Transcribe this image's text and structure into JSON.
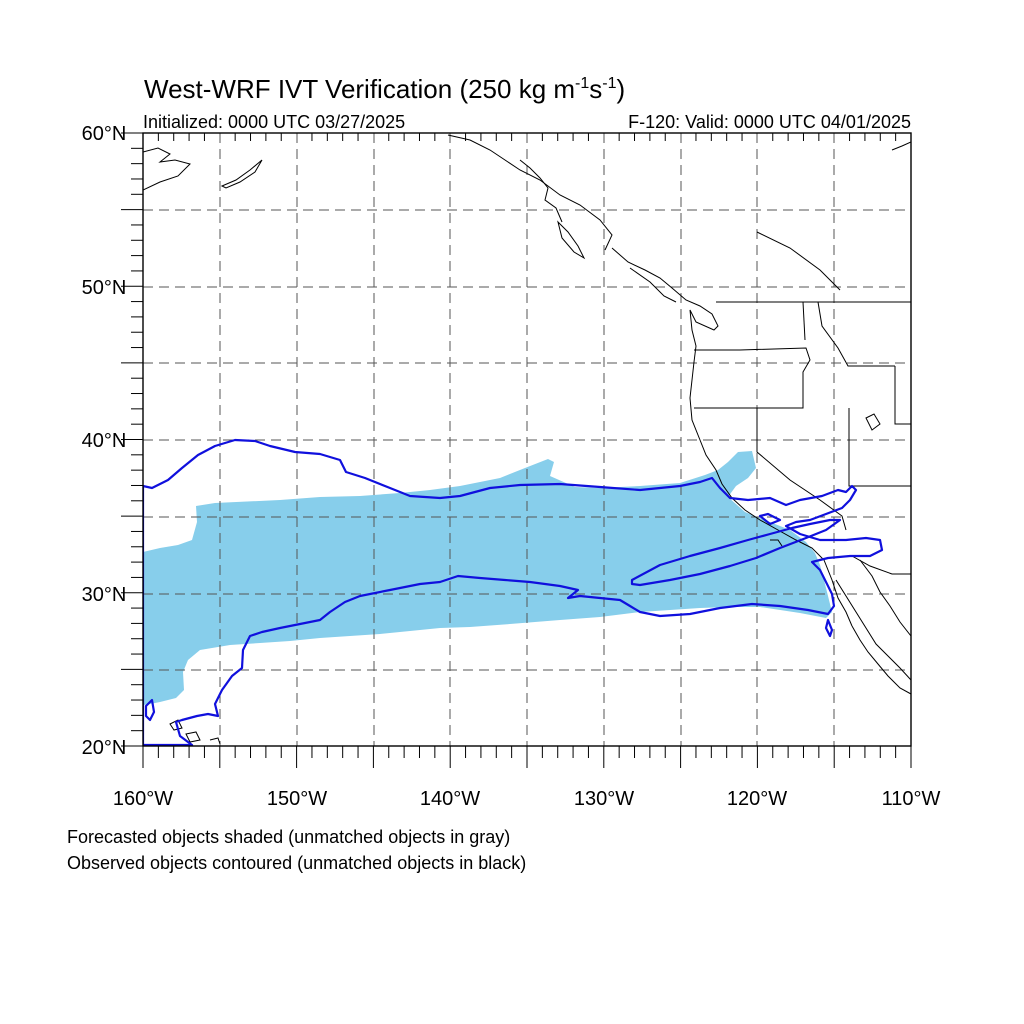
{
  "title": {
    "main": "West-WRF IVT Verification (250 kg m",
    "sup1": "-1",
    "mid": "s",
    "sup2": "-1",
    "end": ")"
  },
  "subtitle": {
    "left": "Initialized: 0000 UTC 03/27/2025",
    "right": "F-120: Valid: 0000 UTC 04/01/2025"
  },
  "map": {
    "lon_range": [
      -160,
      -110
    ],
    "lat_range": [
      20,
      60
    ],
    "lon_ticks": [
      "160°W",
      "150°W",
      "140°W",
      "130°W",
      "120°W",
      "110°W"
    ],
    "lat_ticks": [
      "20°N",
      "30°N",
      "40°N",
      "50°N",
      "60°N"
    ],
    "grid": "dashed every 5°",
    "colors": {
      "forecast_fill": "#87ceeb",
      "observed_contour": "#1010dd",
      "coastline": "#000000"
    }
  },
  "legend": {
    "line1": "Forecasted objects shaded (unmatched objects in gray)",
    "line2": "Observed objects contoured (unmatched objects in black)"
  }
}
